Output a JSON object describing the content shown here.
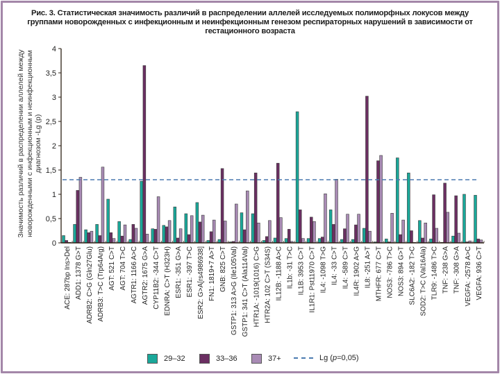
{
  "title": "Рис. 3. Статистическая значимость различий в распределении аллелей исследуемых полиморфных локусов между группами новорожденных с инфекционным и неинфекционным генезом респираторных нарушений в зависимости от гестационного возраста",
  "colors": {
    "series_29_32": "#1aa89a",
    "series_33_36": "#6b2f62",
    "series_37plus": "#a98bb5",
    "threshold": "#4a7ab0",
    "frame": "#a386a8"
  },
  "legend": {
    "items": [
      {
        "label": "29–32"
      },
      {
        "label": "33–36"
      },
      {
        "label": "37+"
      },
      {
        "label": "Lg (p=0,05)"
      }
    ]
  },
  "chart_data": {
    "type": "bar",
    "title": "Рис. 3. Статистическая значимость различий в распределении аллелей исследуемых полиморфных локусов между группами новорожденных с инфекционным и неинфекционным генезом респираторных нарушений в зависимости от гестационного возраста",
    "xlabel": "",
    "ylabel": "Значимость различий в распределении аллелей между новорожденными с инфекционным и неинфекционным диагнозом -Lg (p)",
    "ylim": [
      0,
      4
    ],
    "yticks": [
      "0",
      "0,5",
      "1",
      "1,5",
      "2",
      "2,5",
      "3",
      "3,5",
      "4"
    ],
    "ytick_values": [
      0,
      0.5,
      1,
      1.5,
      2,
      2.5,
      3,
      3.5,
      4
    ],
    "grid": false,
    "legend_position": "bottom",
    "threshold": {
      "label": "Lg (p=0,05)",
      "value": 1.3,
      "style": "dashed"
    },
    "categories": [
      "ACE: 287bp Ins>Del",
      "ADD1: 1378 G>T",
      "ADRB2: C>G (Gln27Glu)",
      "ADRB3: T>C (Trp64Arg)",
      "AGT: 521 C>T",
      "AGT: 704 T>C",
      "AGTR1: 1166 A>C",
      "AGTR2: 1675 G>A",
      "CYP11B2: -344 C>T",
      "EDNRA: C>T (H323H)",
      "ESR1: -351 G>A",
      "ESR1: -397 T>C",
      "ESR2: G>A[rs4986938]",
      "FN1: 1819+7 A>T",
      "GNB: 825 C>T",
      "GSTP1: 313 A>G (Ile105Val)",
      "GSTP1: 341 C>T (Ala114Val)",
      "HTR1A: -1019(1016) C>G",
      "HTR2A: 102 C>T (S34S)",
      "IL12B: -1188 A>C",
      "IL1b: -31 T>C",
      "IL1B: 3953 C>T",
      "IL1R1: Pst11970 C>T",
      "IL4: -1098 T>G",
      "IL4: -33 C>T",
      "IL4: -589 C>T",
      "IL4R: 1902 A>G",
      "IL8: -251 A>T",
      "MTHFR: 677 C>T",
      "NOS3: -786 T>C",
      "NOS3: 894 G>T",
      "SLC6A2: -182 T>C",
      "SOD2: T>C (Val16Ala)",
      "TLR9: -1486 T>C",
      "TNF: -238 G>A",
      "TNF: -308 G>A",
      "VEGFA: -2578 A>C",
      "VEGFA: 936 C>T"
    ],
    "series": [
      {
        "name": "29–32",
        "values": [
          0.15,
          0.38,
          0.27,
          0.38,
          0.9,
          0.44,
          0.07,
          1.27,
          0.29,
          0.36,
          0.74,
          0.6,
          0.83,
          0.05,
          0.07,
          0.02,
          0.62,
          0.6,
          0.05,
          0.1,
          0.09,
          2.7,
          0.09,
          0.09,
          0.68,
          0.07,
          0.07,
          0.3,
          0.02,
          0.08,
          1.75,
          1.44,
          0.46,
          0.08,
          0.01,
          0.14,
          1.0,
          0.98
        ]
      },
      {
        "name": "33–36",
        "values": [
          0.05,
          1.08,
          0.21,
          0.15,
          0.21,
          0.14,
          0.38,
          3.65,
          0.28,
          0.33,
          0.1,
          0.17,
          0.43,
          0.23,
          1.53,
          0.03,
          0.27,
          1.44,
          0.13,
          1.64,
          0.28,
          0.68,
          0.53,
          0.12,
          0.38,
          0.29,
          0.37,
          3.02,
          1.69,
          0.02,
          0.17,
          0.25,
          0.1,
          0.99,
          1.23,
          0.97,
          0.02,
          0.08
        ]
      },
      {
        "name": "37+",
        "values": [
          0.01,
          1.35,
          0.24,
          1.56,
          0.09,
          0.37,
          0.3,
          0.18,
          0.95,
          0.46,
          0.29,
          0.56,
          0.57,
          0.47,
          0.45,
          0.8,
          1.07,
          0.41,
          0.46,
          0.52,
          0.03,
          0.09,
          0.44,
          1.01,
          1.31,
          0.59,
          0.59,
          0.24,
          1.8,
          0.61,
          0.47,
          0.0,
          0.41,
          0.3,
          0.63,
          0.2,
          0.04,
          0.06
        ]
      }
    ]
  }
}
